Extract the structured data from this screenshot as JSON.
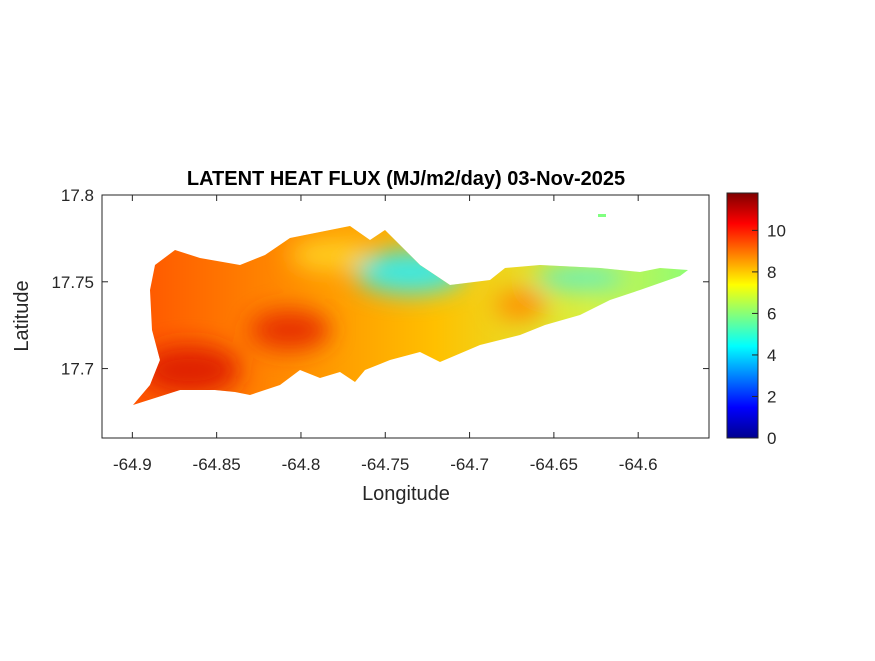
{
  "chart_data": {
    "type": "heatmap",
    "title": "LATENT HEAT FLUX (MJ/m2/day) 03-Nov-2025",
    "x_label": "Longitude",
    "y_label": "Latitude",
    "xlim": [
      -64.918,
      -64.558
    ],
    "ylim": [
      17.66,
      17.8
    ],
    "xticks": [
      -64.9,
      -64.85,
      -64.8,
      -64.75,
      -64.7,
      -64.65,
      -64.6
    ],
    "yticks": [
      17.7,
      17.75,
      17.8
    ],
    "colormap": "jet",
    "clim": [
      0,
      11.8
    ],
    "cticks": [
      0,
      2,
      4,
      6,
      8,
      10
    ]
  }
}
